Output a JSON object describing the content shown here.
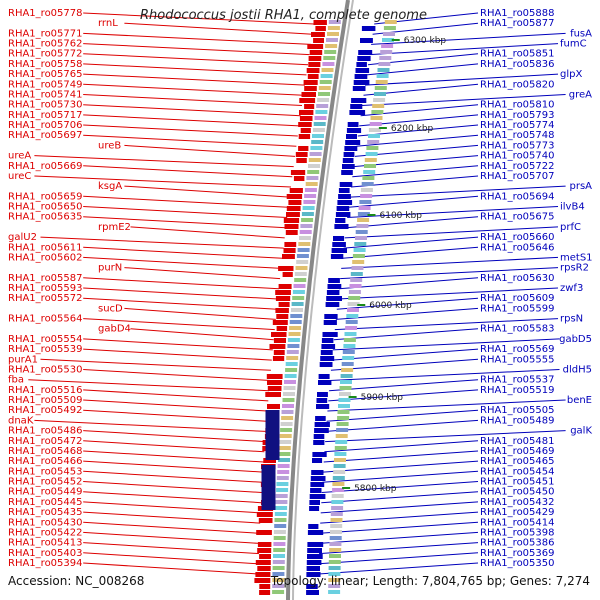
{
  "title": "Rhodococcus jostii RHA1, complete genome",
  "accession": "Accession: NC_008268",
  "summary": "Topology: linear; Length: 7,804,765 bp; Genes: 7,274",
  "colors": {
    "left_strand": "#dd0000",
    "right_strand": "#0000bb",
    "backbone": "#888888",
    "rna": "#e879c8"
  },
  "scale_marks": [
    {
      "label": "6300 kbp"
    },
    {
      "label": "6200 kbp"
    },
    {
      "label": "6100 kbp"
    },
    {
      "label": "6000 kbp"
    },
    {
      "label": "5900 kbp"
    },
    {
      "label": "5800 kbp"
    }
  ],
  "left_labels": [
    "RHA1_ro05778",
    "rrnL",
    "RHA1_ro05771",
    "RHA1_ro05762",
    "RHA1_ro05772",
    "RHA1_ro05758",
    "RHA1_ro05765",
    "RHA1_ro05749",
    "RHA1_ro05741",
    "RHA1_ro05730",
    "RHA1_ro05717",
    "RHA1_ro05706",
    "RHA1_ro05697",
    "ureB",
    "ureA",
    "RHA1_ro05669",
    "ureC",
    "ksgA",
    "RHA1_ro05659",
    "RHA1_ro05650",
    "RHA1_ro05635",
    "rpmE2",
    "galU2",
    "RHA1_ro05611",
    "RHA1_ro05602",
    "purN",
    "RHA1_ro05587",
    "RHA1_ro05593",
    "RHA1_ro05572",
    "sucD",
    "RHA1_ro05564",
    "gabD4",
    "RHA1_ro05554",
    "RHA1_ro05539",
    "purA1",
    "RHA1_ro05530",
    "fba",
    "RHA1_ro05516",
    "RHA1_ro05509",
    "RHA1_ro05492",
    "dnaK",
    "RHA1_ro05486",
    "RHA1_ro05472",
    "RHA1_ro05468",
    "RHA1_ro05466",
    "RHA1_ro05453",
    "RHA1_ro05452",
    "RHA1_ro05449",
    "RHA1_ro05445",
    "RHA1_ro05435",
    "RHA1_ro05430",
    "RHA1_ro05422",
    "RHA1_ro05413",
    "RHA1_ro05403",
    "RHA1_ro05394"
  ],
  "right_labels": [
    "RHA1_ro05888",
    "RHA1_ro05877",
    "fusA",
    "fumC",
    "RHA1_ro05851",
    "RHA1_ro05836",
    "glpX",
    "RHA1_ro05820",
    "greA",
    "RHA1_ro05810",
    "RHA1_ro05793",
    "RHA1_ro05774",
    "RHA1_ro05748",
    "RHA1_ro05773",
    "RHA1_ro05740",
    "RHA1_ro05722",
    "RHA1_ro05707",
    "prsA",
    "RHA1_ro05694",
    "ilvB4",
    "RHA1_ro05675",
    "prfC",
    "RHA1_ro05660",
    "RHA1_ro05646",
    "metS1",
    "rpsR2",
    "RHA1_ro05630",
    "zwf3",
    "RHA1_ro05609",
    "RHA1_ro05599",
    "rpsN",
    "RHA1_ro05583",
    "gabD5",
    "RHA1_ro05569",
    "RHA1_ro05555",
    "dldH5",
    "RHA1_ro05537",
    "RHA1_ro05519",
    "benE",
    "RHA1_ro05505",
    "RHA1_ro05489",
    "galK",
    "RHA1_ro05481",
    "RHA1_ro05469",
    "RHA1_ro05465",
    "RHA1_ro05454",
    "RHA1_ro05451",
    "RHA1_ro05450",
    "RHA1_ro05432",
    "RHA1_ro05429",
    "RHA1_ro05414",
    "RHA1_ro05398",
    "RHA1_ro05386",
    "RHA1_ro05369",
    "RHA1_ro05350"
  ]
}
